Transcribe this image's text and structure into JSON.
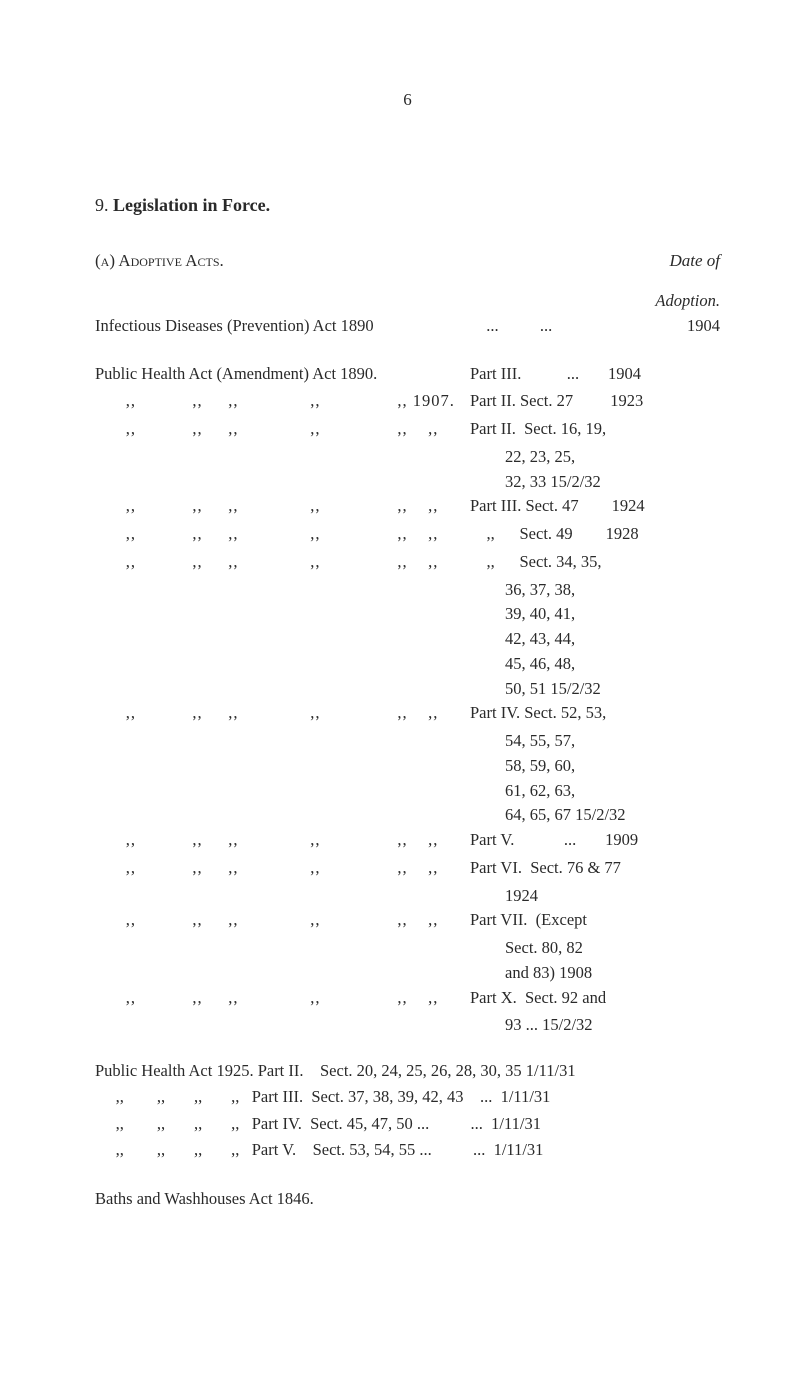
{
  "page_number": "6",
  "section": {
    "num": "9.",
    "title": "Legislation in Force."
  },
  "sub_a": {
    "key": "(a)",
    "caps": "Adoptive Acts.",
    "date_label": "Date of",
    "adoption_label": "Adoption."
  },
  "infectious": {
    "left": "Infectious Diseases (Prevention) Act 1890",
    "dots": "...          ...",
    "year": "1904"
  },
  "pha_header": {
    "left": "Public Health Act (Amendment) Act 1890.",
    "right": "Part III.           ...       1904"
  },
  "rows": [
    {
      "left": "      ,,           ,,     ,,              ,,               ,, 1907.",
      "right": "Part II. Sect. 27         1923"
    },
    {
      "left": "      ,,           ,,     ,,              ,,               ,,    ,,",
      "right": "Part II.  Sect. 16, 19,"
    },
    {
      "cont": "22, 23, 25,"
    },
    {
      "cont": "32, 33       15/2/32"
    },
    {
      "left": "      ,,           ,,     ,,              ,,               ,,    ,,",
      "right": "Part III. Sect. 47        1924"
    },
    {
      "left": "      ,,           ,,     ,,              ,,               ,,    ,,",
      "right": "    ,,      Sect. 49        1928"
    },
    {
      "left": "      ,,           ,,     ,,              ,,               ,,    ,,",
      "right": "    ,,      Sect. 34, 35,"
    },
    {
      "cont": "36, 37, 38,"
    },
    {
      "cont": "39, 40, 41,"
    },
    {
      "cont": "42, 43, 44,"
    },
    {
      "cont": "45, 46, 48,"
    },
    {
      "cont": "50, 51       15/2/32"
    },
    {
      "left": "      ,,           ,,     ,,              ,,               ,,    ,,",
      "right": "Part IV. Sect. 52, 53,"
    },
    {
      "cont": "54, 55, 57,"
    },
    {
      "cont": "58, 59, 60,"
    },
    {
      "cont": "61, 62, 63,"
    },
    {
      "cont": "64, 65, 67 15/2/32"
    },
    {
      "left": "      ,,           ,,     ,,              ,,               ,,    ,,",
      "right": "Part V.            ...       1909"
    },
    {
      "left": "      ,,           ,,     ,,              ,,               ,,    ,,",
      "right": "Part VI.  Sect. 76 & 77"
    },
    {
      "cont": "                      1924"
    },
    {
      "left": "      ,,           ,,     ,,              ,,               ,,    ,,",
      "right": "Part VII.  (Except"
    },
    {
      "cont": "Sect. 80, 82"
    },
    {
      "cont": "and 83)        1908"
    },
    {
      "left": "      ,,           ,,     ,,              ,,               ,,    ,,",
      "right": "Part X.  Sect. 92 and"
    },
    {
      "cont": "93     ...  15/2/32"
    }
  ],
  "pha1925": [
    "Public Health Act 1925. Part II.    Sect. 20, 24, 25, 26, 28, 30, 35 1/11/31",
    "     ,,        ,,       ,,       ,,   Part III.  Sect. 37, 38, 39, 42, 43    ...  1/11/31",
    "     ,,        ,,       ,,       ,,   Part IV.  Sect. 45, 47, 50 ...          ...  1/11/31",
    "     ,,        ,,       ,,       ,,   Part V.    Sect. 53, 54, 55 ...          ...  1/11/31"
  ],
  "baths": "Baths and Washhouses Act 1846."
}
